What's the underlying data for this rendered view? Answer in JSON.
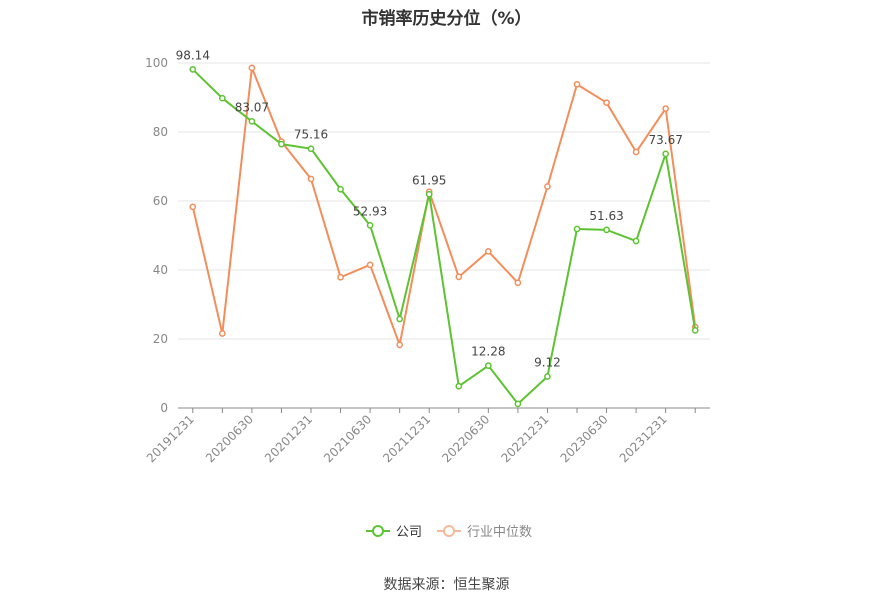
{
  "chart_data": {
    "type": "line",
    "title": "市销率历史分位（%）",
    "x": [
      "20191231",
      "20200331",
      "20200630",
      "20200930",
      "20201231",
      "20210331",
      "20210630",
      "20210930",
      "20211231",
      "20220331",
      "20220630",
      "20220930",
      "20221231",
      "20230331",
      "20230630",
      "20230930",
      "20231231",
      "20240331"
    ],
    "tick_labels": [
      "20191231",
      "20200630",
      "20201231",
      "20210630",
      "20211231",
      "20220630",
      "20221231",
      "20230630",
      "20231231"
    ],
    "yticks": [
      0,
      20,
      40,
      60,
      80,
      100
    ],
    "ylim": [
      0,
      100
    ],
    "grid": true,
    "legend_position": "bottom-center",
    "series": [
      {
        "name": "公司",
        "color": "#5dc332",
        "values": [
          98.14,
          89.8,
          83.07,
          76.5,
          75.16,
          63.4,
          52.93,
          25.8,
          61.95,
          6.3,
          12.28,
          1.2,
          9.12,
          51.9,
          51.63,
          48.4,
          73.67,
          22.5
        ],
        "labels": {
          "0": "98.14",
          "2": "83.07",
          "4": "75.16",
          "6": "52.93",
          "8": "61.95",
          "10": "12.28",
          "12": "9.12",
          "14": "51.63",
          "16": "73.67"
        }
      },
      {
        "name": "行业中位数",
        "color": "#f28e5b",
        "values": [
          58.3,
          21.6,
          98.6,
          77.2,
          66.4,
          37.9,
          41.5,
          18.3,
          62.7,
          38.0,
          45.4,
          36.3,
          64.2,
          93.8,
          88.5,
          74.2,
          86.8,
          23.5
        ],
        "labels": {}
      }
    ]
  },
  "source": "数据来源：恒生聚源"
}
